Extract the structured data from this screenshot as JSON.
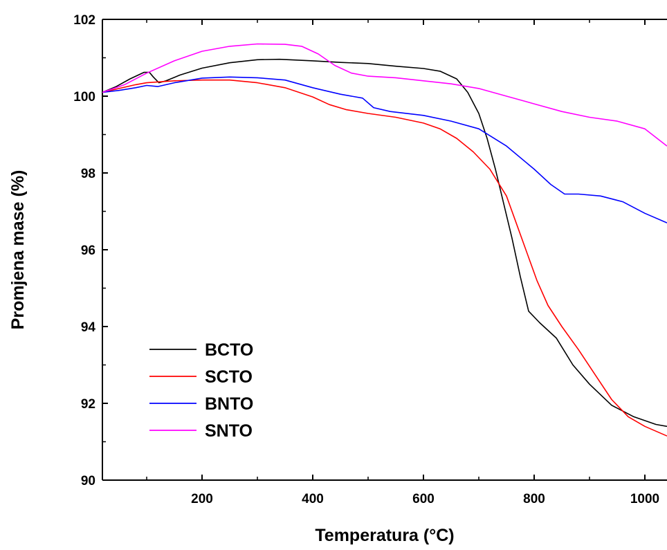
{
  "chart_data": {
    "type": "line",
    "title": "",
    "xlabel": "Temperatura (°C)",
    "ylabel": "Promjena mase (%)",
    "xlim": [
      20,
      1040
    ],
    "ylim": [
      90,
      102
    ],
    "xticks": [
      200,
      400,
      600,
      800,
      1000
    ],
    "yticks": [
      90,
      92,
      94,
      96,
      98,
      100,
      102
    ],
    "grid": false,
    "legend_position": "bottom-left",
    "series": [
      {
        "name": "BCTO",
        "color": "#000000",
        "points": [
          [
            20,
            100.1
          ],
          [
            45,
            100.25
          ],
          [
            70,
            100.45
          ],
          [
            95,
            100.62
          ],
          [
            105,
            100.62
          ],
          [
            112,
            100.5
          ],
          [
            122,
            100.35
          ],
          [
            135,
            100.4
          ],
          [
            160,
            100.55
          ],
          [
            200,
            100.73
          ],
          [
            250,
            100.87
          ],
          [
            300,
            100.95
          ],
          [
            340,
            100.96
          ],
          [
            400,
            100.92
          ],
          [
            450,
            100.88
          ],
          [
            500,
            100.85
          ],
          [
            550,
            100.78
          ],
          [
            600,
            100.72
          ],
          [
            630,
            100.65
          ],
          [
            660,
            100.45
          ],
          [
            680,
            100.1
          ],
          [
            700,
            99.55
          ],
          [
            715,
            98.9
          ],
          [
            730,
            98.1
          ],
          [
            745,
            97.2
          ],
          [
            760,
            96.3
          ],
          [
            775,
            95.3
          ],
          [
            790,
            94.4
          ],
          [
            810,
            94.1
          ],
          [
            840,
            93.7
          ],
          [
            870,
            93.0
          ],
          [
            900,
            92.5
          ],
          [
            940,
            91.95
          ],
          [
            980,
            91.65
          ],
          [
            1020,
            91.45
          ],
          [
            1040,
            91.4
          ]
        ]
      },
      {
        "name": "SCTO",
        "color": "#ff0000",
        "points": [
          [
            20,
            100.1
          ],
          [
            50,
            100.2
          ],
          [
            80,
            100.3
          ],
          [
            100,
            100.35
          ],
          [
            150,
            100.4
          ],
          [
            200,
            100.42
          ],
          [
            250,
            100.42
          ],
          [
            300,
            100.35
          ],
          [
            350,
            100.22
          ],
          [
            400,
            99.98
          ],
          [
            430,
            99.78
          ],
          [
            460,
            99.65
          ],
          [
            500,
            99.55
          ],
          [
            550,
            99.45
          ],
          [
            600,
            99.3
          ],
          [
            630,
            99.15
          ],
          [
            660,
            98.9
          ],
          [
            690,
            98.55
          ],
          [
            720,
            98.1
          ],
          [
            750,
            97.4
          ],
          [
            770,
            96.6
          ],
          [
            790,
            95.8
          ],
          [
            805,
            95.2
          ],
          [
            825,
            94.55
          ],
          [
            850,
            94.0
          ],
          [
            880,
            93.4
          ],
          [
            910,
            92.75
          ],
          [
            940,
            92.1
          ],
          [
            970,
            91.65
          ],
          [
            1000,
            91.4
          ],
          [
            1040,
            91.15
          ]
        ]
      },
      {
        "name": "BNTO",
        "color": "#0000ff",
        "points": [
          [
            20,
            100.1
          ],
          [
            50,
            100.15
          ],
          [
            80,
            100.22
          ],
          [
            100,
            100.28
          ],
          [
            120,
            100.25
          ],
          [
            150,
            100.35
          ],
          [
            200,
            100.47
          ],
          [
            250,
            100.5
          ],
          [
            300,
            100.48
          ],
          [
            350,
            100.42
          ],
          [
            400,
            100.22
          ],
          [
            450,
            100.05
          ],
          [
            490,
            99.95
          ],
          [
            510,
            99.7
          ],
          [
            540,
            99.6
          ],
          [
            600,
            99.5
          ],
          [
            650,
            99.35
          ],
          [
            700,
            99.15
          ],
          [
            750,
            98.7
          ],
          [
            800,
            98.1
          ],
          [
            830,
            97.7
          ],
          [
            855,
            97.45
          ],
          [
            880,
            97.45
          ],
          [
            920,
            97.4
          ],
          [
            960,
            97.25
          ],
          [
            1000,
            96.95
          ],
          [
            1040,
            96.7
          ]
        ]
      },
      {
        "name": "SNTO",
        "color": "#ff00ff",
        "points": [
          [
            20,
            100.1
          ],
          [
            60,
            100.3
          ],
          [
            100,
            100.6
          ],
          [
            150,
            100.92
          ],
          [
            200,
            101.17
          ],
          [
            250,
            101.3
          ],
          [
            300,
            101.36
          ],
          [
            350,
            101.35
          ],
          [
            380,
            101.3
          ],
          [
            410,
            101.1
          ],
          [
            440,
            100.8
          ],
          [
            470,
            100.6
          ],
          [
            500,
            100.52
          ],
          [
            550,
            100.48
          ],
          [
            600,
            100.4
          ],
          [
            650,
            100.32
          ],
          [
            700,
            100.2
          ],
          [
            750,
            100.0
          ],
          [
            800,
            99.8
          ],
          [
            850,
            99.6
          ],
          [
            900,
            99.45
          ],
          [
            950,
            99.35
          ],
          [
            1000,
            99.15
          ],
          [
            1040,
            98.7
          ]
        ]
      }
    ]
  }
}
